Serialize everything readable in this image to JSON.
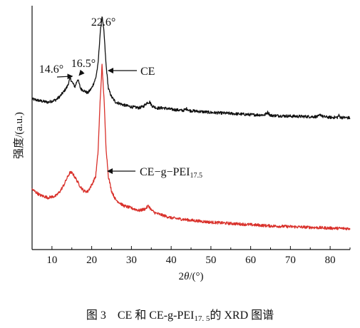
{
  "caption": {
    "prefix": "图 3　CE 和 CE-g-PEI",
    "subscript": "17. 5",
    "suffix": "的 XRD 图谱"
  },
  "chart_data": {
    "type": "line",
    "title": "",
    "xlabel_prefix": "2",
    "xlabel_var": "θ",
    "xlabel_suffix": "/(°)",
    "ylabel": "强度/(a.u.)",
    "xlim": [
      5,
      85
    ],
    "xticks": [
      10,
      20,
      30,
      40,
      50,
      60,
      70,
      80
    ],
    "ylim": [
      0,
      1
    ],
    "y_ticks_shown": false,
    "grid": false,
    "legend": "none",
    "series": [
      {
        "name": "CE",
        "color": "#111111",
        "x": [
          5,
          7,
          9,
          11,
          12,
          13,
          13.8,
          14.6,
          15.3,
          15.8,
          16.5,
          17.2,
          18,
          19,
          20,
          21,
          21.6,
          22.1,
          22.6,
          23.1,
          23.6,
          24.2,
          25,
          26,
          28,
          30,
          32,
          33,
          34,
          34.6,
          35.2,
          36.5,
          38,
          40,
          43,
          44,
          44.5,
          46,
          50,
          55,
          60,
          63.5,
          64.3,
          65,
          70,
          75,
          77,
          77.6,
          78.2,
          80,
          81.8,
          82.2,
          82.6,
          85
        ],
        "y": [
          0.617,
          0.61,
          0.604,
          0.614,
          0.628,
          0.648,
          0.667,
          0.702,
          0.68,
          0.668,
          0.7,
          0.66,
          0.652,
          0.642,
          0.662,
          0.702,
          0.76,
          0.88,
          0.958,
          0.89,
          0.76,
          0.66,
          0.626,
          0.605,
          0.593,
          0.585,
          0.581,
          0.587,
          0.603,
          0.605,
          0.589,
          0.58,
          0.581,
          0.575,
          0.57,
          0.578,
          0.57,
          0.568,
          0.562,
          0.558,
          0.553,
          0.552,
          0.563,
          0.55,
          0.547,
          0.545,
          0.545,
          0.554,
          0.545,
          0.542,
          0.542,
          0.55,
          0.542,
          0.54
        ]
      },
      {
        "name": "CE-g-PEI17.5",
        "color": "#d9312b",
        "x": [
          5,
          7,
          9,
          11,
          12,
          13,
          14,
          14.6,
          15.2,
          16,
          17,
          18,
          19,
          20,
          21,
          21.6,
          22.1,
          22.6,
          23.1,
          23.6,
          24.2,
          25,
          26,
          28,
          30,
          32,
          33.5,
          34.3,
          35,
          36,
          38,
          40,
          45,
          50,
          55,
          60,
          65,
          70,
          75,
          80,
          85
        ],
        "y": [
          0.247,
          0.223,
          0.213,
          0.22,
          0.238,
          0.265,
          0.3,
          0.317,
          0.312,
          0.291,
          0.262,
          0.24,
          0.238,
          0.265,
          0.3,
          0.4,
          0.6,
          0.755,
          0.62,
          0.42,
          0.3,
          0.24,
          0.205,
          0.18,
          0.17,
          0.16,
          0.167,
          0.18,
          0.162,
          0.15,
          0.14,
          0.13,
          0.12,
          0.112,
          0.107,
          0.102,
          0.097,
          0.094,
          0.091,
          0.088,
          0.086
        ]
      }
    ],
    "annotations": [
      {
        "text": "22.6°",
        "x": 22.6,
        "y": 0.958,
        "kind": "peak-label"
      },
      {
        "text": "14.6°",
        "x": 14.6,
        "y": 0.702,
        "kind": "peak-arrow"
      },
      {
        "text": "16.5°",
        "x": 16.5,
        "y": 0.7,
        "kind": "peak-arrow"
      },
      {
        "text": "CE",
        "x": 22.6,
        "y": 0.85,
        "kind": "series-arrow"
      },
      {
        "text": "CE−g−PEI",
        "sub": "17.5",
        "x": 22.6,
        "y": 0.52,
        "kind": "series-arrow"
      }
    ]
  }
}
